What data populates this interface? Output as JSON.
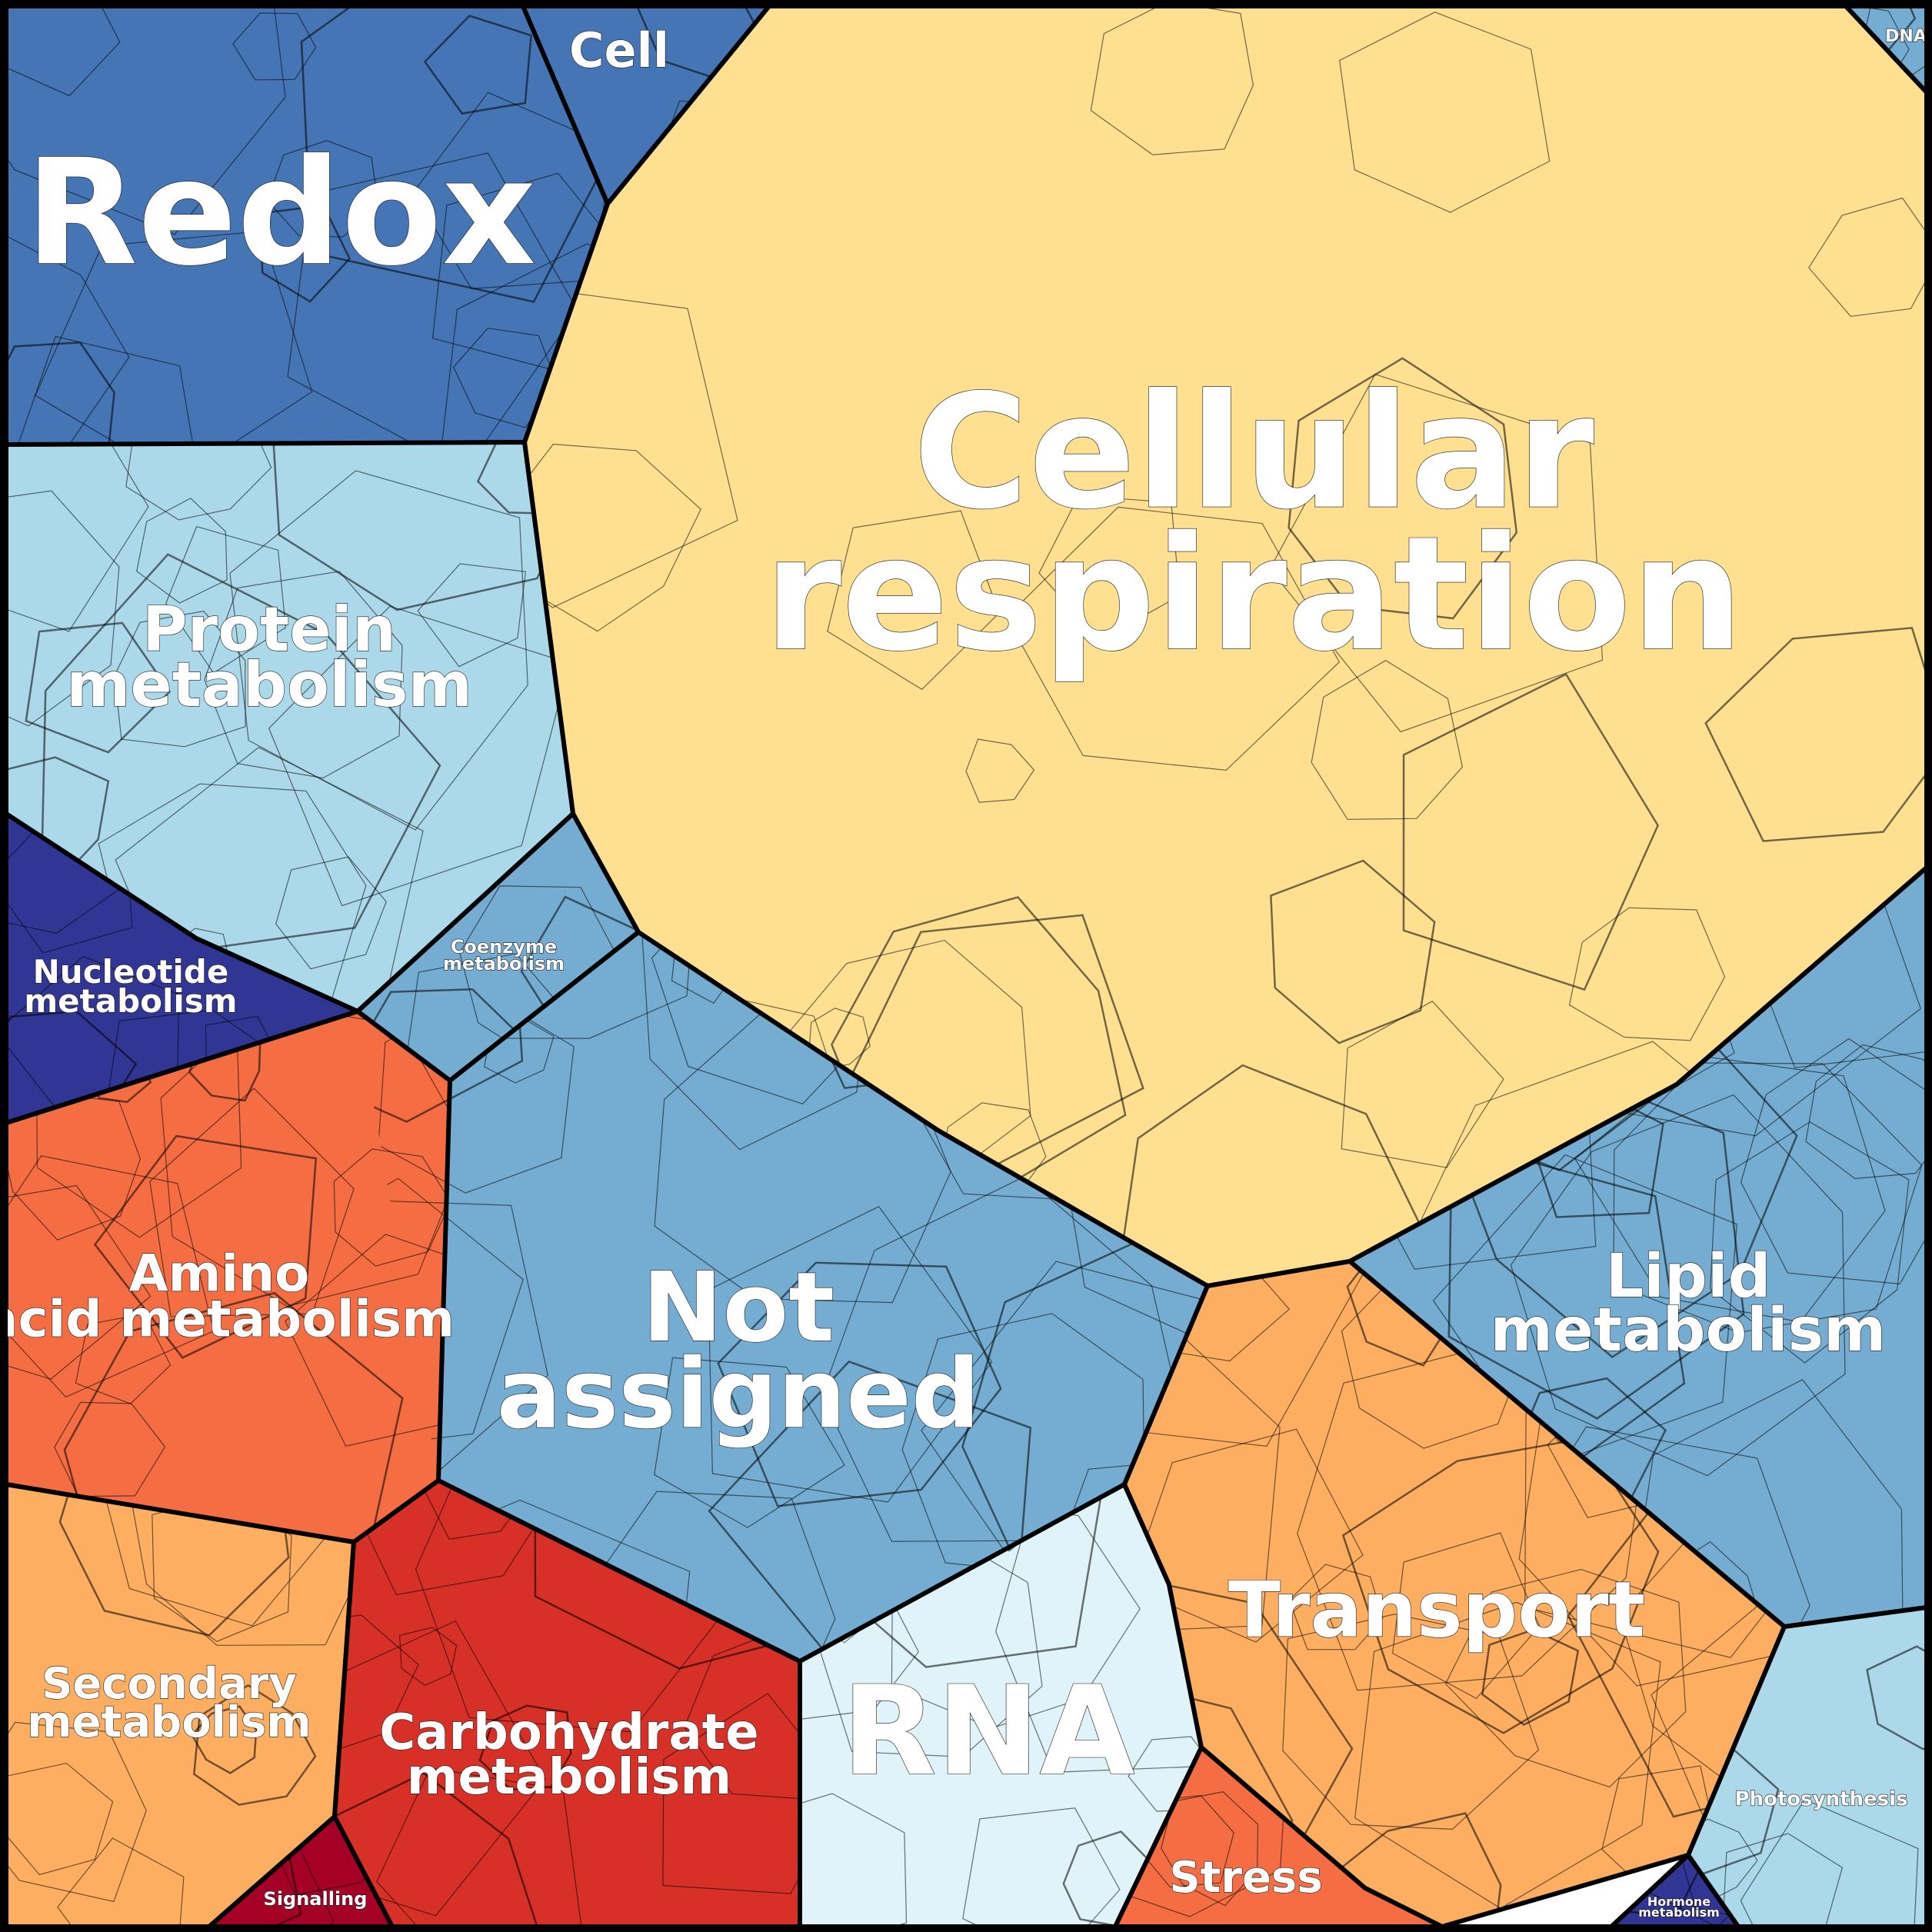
{
  "chart_data": {
    "type": "voronoi-treemap",
    "title": "",
    "cells": [
      {
        "id": "redox",
        "label": "Redox",
        "color": "#4575b4"
      },
      {
        "id": "cell",
        "label": "Cell",
        "color": "#4575b4"
      },
      {
        "id": "cellular-respiration",
        "label": "Cellular respiration",
        "color": "#fee090"
      },
      {
        "id": "dna",
        "label": "DNA",
        "color": "#74add1"
      },
      {
        "id": "protein-metabolism",
        "label": "Protein metabolism",
        "color": "#abd9e9"
      },
      {
        "id": "nucleotide-metabolism",
        "label": "Nucleotide metabolism",
        "color": "#313695"
      },
      {
        "id": "coenzyme-metabolism",
        "label": "Coenzyme metabolism",
        "color": "#74add1"
      },
      {
        "id": "not-assigned",
        "label": "Not assigned",
        "color": "#74add1"
      },
      {
        "id": "lipid-metabolism",
        "label": "Lipid metabolism",
        "color": "#74add1"
      },
      {
        "id": "amino-acid-metabolism",
        "label": "Amino acid metabolism",
        "color": "#f46d43"
      },
      {
        "id": "secondary-metabolism",
        "label": "Secondary metabolism",
        "color": "#fdae61"
      },
      {
        "id": "carbohydrate-metabolism",
        "label": "Carbohydrate metabolism",
        "color": "#d73027"
      },
      {
        "id": "signalling",
        "label": "Signalling",
        "color": "#a50026"
      },
      {
        "id": "rna",
        "label": "RNA",
        "color": "#e0f3f8"
      },
      {
        "id": "transport",
        "label": "Transport",
        "color": "#fdae61"
      },
      {
        "id": "stress",
        "label": "Stress",
        "color": "#f46d43"
      },
      {
        "id": "photosynthesis",
        "label": "Photosynthesis",
        "color": "#abd9e9"
      },
      {
        "id": "hormone-metabolism",
        "label": "Hormone metabolism",
        "color": "#313695"
      }
    ]
  }
}
